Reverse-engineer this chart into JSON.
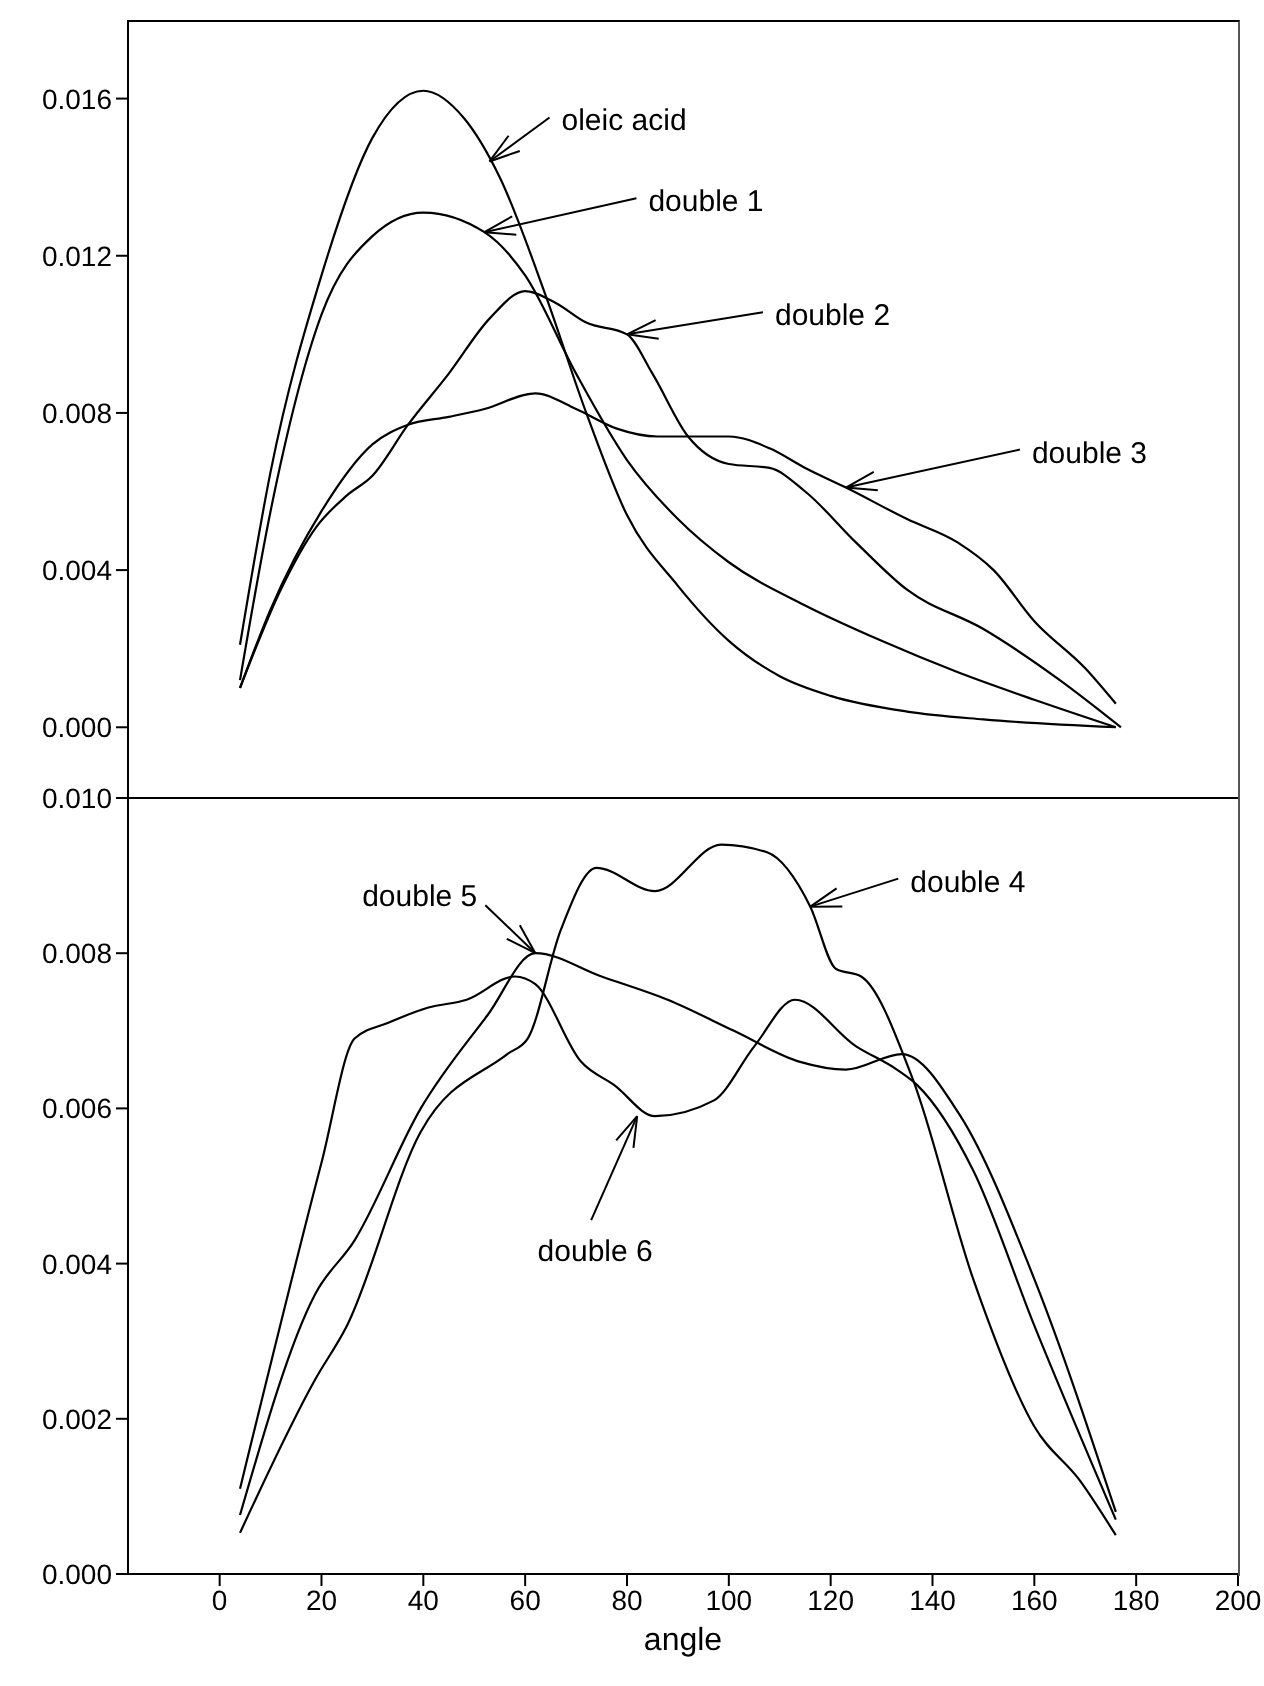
{
  "chart_data": [
    {
      "type": "line",
      "xlim": [
        -18,
        200
      ],
      "ylim": [
        -0.0018,
        0.018
      ],
      "tick_labels": "y",
      "yticks": [
        {
          "value": 0,
          "label": "0.000"
        },
        {
          "value": 0.004,
          "label": "0.004"
        },
        {
          "value": 0.008,
          "label": "0.008"
        },
        {
          "value": 0.012,
          "label": "0.012"
        },
        {
          "value": 0.016,
          "label": "0.016"
        }
      ],
      "series": [
        {
          "color": "#000000",
          "x": [
            4,
            10,
            20,
            30,
            40,
            48,
            55,
            64,
            72,
            80,
            90,
            100,
            110,
            120,
            135,
            150,
            176
          ],
          "values": [
            0.0021,
            0.0065,
            0.0115,
            0.015,
            0.0162,
            0.0155,
            0.014,
            0.011,
            0.008,
            0.0054,
            0.0036,
            0.0022,
            0.0013,
            0.0008,
            0.0004,
            0.0002,
            0.0
          ]
        },
        {
          "color": "#000000",
          "x": [
            4,
            10,
            20,
            30,
            40,
            52,
            60,
            70,
            80,
            90,
            100,
            115,
            130,
            145,
            160,
            176
          ],
          "values": [
            0.0012,
            0.0055,
            0.0105,
            0.0125,
            0.0131,
            0.0126,
            0.0115,
            0.009,
            0.0068,
            0.0053,
            0.0042,
            0.0031,
            0.0022,
            0.0014,
            0.0007,
            0.0
          ]
        },
        {
          "color": "#000000",
          "x": [
            4,
            12,
            19,
            25,
            30,
            37,
            45,
            53,
            60,
            66,
            72,
            80,
            85,
            92,
            100,
            108,
            115,
            125,
            135,
            150,
            165,
            177
          ],
          "values": [
            0.001,
            0.0035,
            0.0051,
            0.0059,
            0.0064,
            0.0077,
            0.009,
            0.0104,
            0.0111,
            0.0108,
            0.0103,
            0.01,
            0.009,
            0.0074,
            0.0067,
            0.0066,
            0.006,
            0.0047,
            0.0035,
            0.0025,
            0.0012,
            0.0
          ]
        },
        {
          "color": "#000000",
          "x": [
            4,
            10,
            20,
            30,
            37,
            45,
            52,
            62,
            70,
            78,
            86,
            100,
            108,
            115,
            123,
            135,
            145,
            152,
            160,
            170,
            176
          ],
          "values": [
            0.001,
            0.003,
            0.0055,
            0.0072,
            0.0077,
            0.0079,
            0.0081,
            0.0085,
            0.0081,
            0.0076,
            0.0074,
            0.0074,
            0.0071,
            0.0066,
            0.0061,
            0.0053,
            0.0047,
            0.004,
            0.0027,
            0.0015,
            0.0006
          ]
        }
      ],
      "annotations": [
        {
          "text": "oleic acid",
          "x": 53,
          "y": 0.0144
        },
        {
          "text": "double 1",
          "x": 52,
          "y": 0.0126
        },
        {
          "text": "double 2",
          "x": 80,
          "y": 0.01
        },
        {
          "text": "double 3",
          "x": 123,
          "y": 0.0061
        }
      ]
    },
    {
      "type": "line",
      "xlim": [
        -18,
        200
      ],
      "ylim": [
        0,
        0.01
      ],
      "xlabel": "angle",
      "xticks": [
        0,
        20,
        40,
        60,
        80,
        100,
        120,
        140,
        160,
        180,
        200
      ],
      "yticks": [
        {
          "value": 0,
          "label": "0.000"
        },
        {
          "value": 0.002,
          "label": "0.002"
        },
        {
          "value": 0.004,
          "label": "0.004"
        },
        {
          "value": 0.006,
          "label": "0.006"
        },
        {
          "value": 0.008,
          "label": "0.008"
        },
        {
          "value": 0.01,
          "label": "0.010"
        }
      ],
      "series": [
        {
          "color": "#000000",
          "x": [
            4,
            18.7,
            25,
            39.5,
            56.5,
            60.5,
            67,
            74,
            85.5,
            98.5,
            107.5,
            116,
            121,
            126,
            136,
            148,
            160,
            169,
            176
          ],
          "values": [
            0.00053,
            0.0025,
            0.0032,
            0.0057,
            0.0067,
            0.0069,
            0.0083,
            0.0091,
            0.0088,
            0.0094,
            0.0093,
            0.0086,
            0.0078,
            0.0077,
            0.0064,
            0.0038,
            0.0019,
            0.0012,
            0.0005
          ]
        },
        {
          "color": "#000000",
          "x": [
            4,
            18.7,
            26.5,
            39.5,
            52.6,
            62,
            75,
            88,
            101,
            114,
            123,
            134,
            145.5,
            160,
            176
          ],
          "values": [
            0.00076,
            0.0036,
            0.0043,
            0.006,
            0.0072,
            0.008,
            0.0077,
            0.0074,
            0.007,
            0.0066,
            0.0065,
            0.0067,
            0.0059,
            0.0038,
            0.0008
          ]
        },
        {
          "color": "#000000",
          "x": [
            4,
            20,
            26.5,
            33,
            41,
            48.5,
            58,
            62,
            71,
            77.5,
            85.5,
            97,
            105,
            113,
            125,
            133,
            137,
            148,
            160,
            176
          ],
          "values": [
            0.0011,
            0.0053,
            0.0069,
            0.0071,
            0.0073,
            0.0074,
            0.0077,
            0.0076,
            0.0066,
            0.0063,
            0.0059,
            0.0061,
            0.0068,
            0.0074,
            0.0068,
            0.0065,
            0.0063,
            0.0052,
            0.0032,
            0.0007
          ]
        }
      ],
      "annotations": [
        {
          "text": "double 5",
          "x": 62,
          "y": 0.008
        },
        {
          "text": "double 4",
          "x": 116,
          "y": 0.0086
        },
        {
          "text": "double 6",
          "x": 82,
          "y": 0.0059
        }
      ]
    }
  ]
}
